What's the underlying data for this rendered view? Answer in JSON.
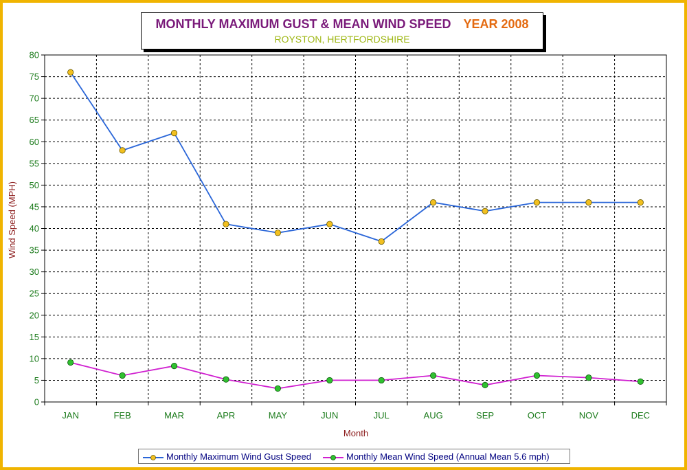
{
  "title": {
    "main": "MONTHLY MAXIMUM GUST & MEAN WIND SPEED",
    "year": "YEAR 2008",
    "subtitle": "ROYSTON, HERTFORDSHIRE"
  },
  "colors": {
    "frame": "#f0b400",
    "gust_line": "#2a66d8",
    "gust_marker": "#f2c020",
    "mean_line": "#d020d0",
    "mean_marker": "#30c030",
    "tick_text": "#1a7a1a",
    "axis_title": "#8b1a1a"
  },
  "legend": {
    "gust_label": "Monthly Maximum Wind Gust Speed",
    "mean_label": "Monthly Mean Wind Speed (Annual Mean 5.6 mph)"
  },
  "chart_data": {
    "type": "line",
    "title": "MONTHLY MAXIMUM GUST & MEAN WIND SPEED",
    "subtitle": "ROYSTON, HERTFORDSHIRE",
    "xlabel": "Month",
    "ylabel": "Wind Speed (MPH)",
    "ylim": [
      0,
      80
    ],
    "yticks": [
      0,
      5,
      10,
      15,
      20,
      25,
      30,
      35,
      40,
      45,
      50,
      55,
      60,
      65,
      70,
      75,
      80
    ],
    "grid": true,
    "legend_position": "bottom",
    "categories": [
      "JAN",
      "FEB",
      "MAR",
      "APR",
      "MAY",
      "JUN",
      "JUL",
      "AUG",
      "SEP",
      "OCT",
      "NOV",
      "DEC"
    ],
    "series": [
      {
        "name": "Monthly Maximum Wind Gust Speed",
        "values": [
          76,
          58,
          62,
          41,
          39,
          41,
          37,
          46,
          44,
          46,
          46,
          46
        ]
      },
      {
        "name": "Monthly Mean Wind Speed (Annual Mean 5.6 mph)",
        "values": [
          9.1,
          6.1,
          8.3,
          5.2,
          3.1,
          5.0,
          5.0,
          6.1,
          3.9,
          6.1,
          5.6,
          4.7
        ]
      }
    ]
  }
}
